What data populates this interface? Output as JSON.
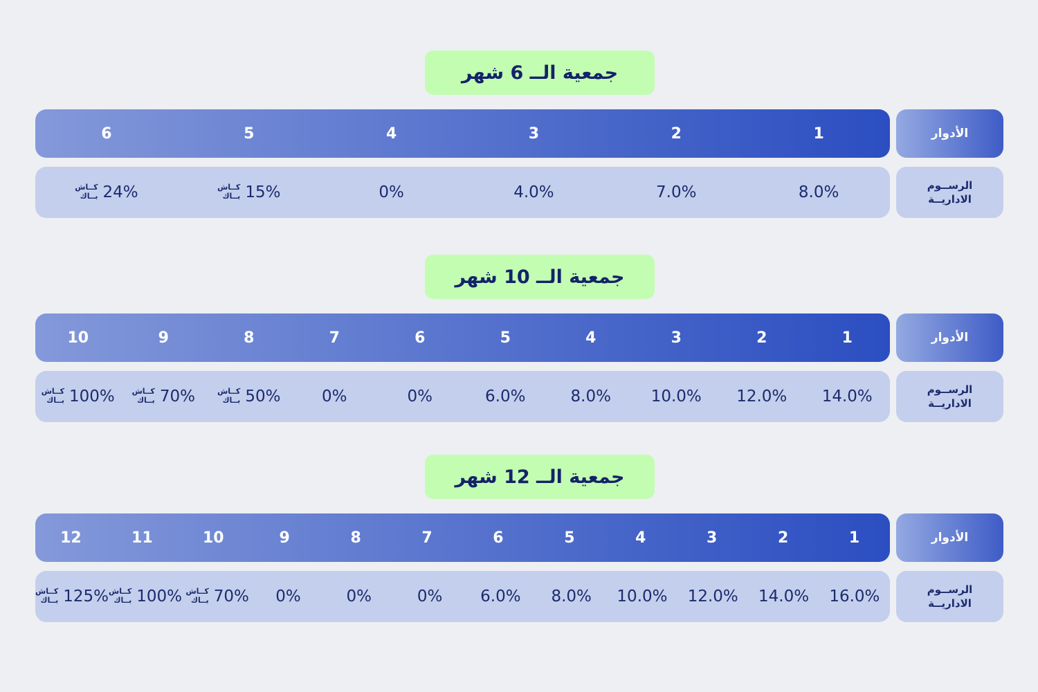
{
  "labels": {
    "roles_header": "الأدوار",
    "fees_header_line1": "الرســوم",
    "fees_header_line2": "الاداريــة",
    "cashback_line1": "كــاش",
    "cashback_line2": "بــاك"
  },
  "colors": {
    "background": "#edeff2",
    "roles_gradient_start": "#8499da",
    "roles_gradient_end": "#2b4ec1",
    "fee_row_background": "#c4cfed",
    "navy_text": "#1b2b6d",
    "badge_background": "#c3fdb1",
    "badge_text": "#142369",
    "role_number_text": "#ffffff"
  },
  "chart_data": [
    {
      "type": "table",
      "title": "جمعية الــ 6 شهر",
      "row_headers": [
        "الأدوار",
        "الرســوم الاداريــة"
      ],
      "columns": [
        {
          "role": "1",
          "fee": "8.0%",
          "cashback": false
        },
        {
          "role": "2",
          "fee": "7.0%",
          "cashback": false
        },
        {
          "role": "3",
          "fee": "4.0%",
          "cashback": false
        },
        {
          "role": "4",
          "fee": "0%",
          "cashback": false
        },
        {
          "role": "5",
          "fee": "15%",
          "cashback": true
        },
        {
          "role": "6",
          "fee": "24%",
          "cashback": true
        }
      ]
    },
    {
      "type": "table",
      "title": "جمعية الــ 10 شهر",
      "row_headers": [
        "الأدوار",
        "الرســوم الاداريــة"
      ],
      "columns": [
        {
          "role": "1",
          "fee": "14.0%",
          "cashback": false
        },
        {
          "role": "2",
          "fee": "12.0%",
          "cashback": false
        },
        {
          "role": "3",
          "fee": "10.0%",
          "cashback": false
        },
        {
          "role": "4",
          "fee": "8.0%",
          "cashback": false
        },
        {
          "role": "5",
          "fee": "6.0%",
          "cashback": false
        },
        {
          "role": "6",
          "fee": "0%",
          "cashback": false
        },
        {
          "role": "7",
          "fee": "0%",
          "cashback": false
        },
        {
          "role": "8",
          "fee": "50%",
          "cashback": true
        },
        {
          "role": "9",
          "fee": "70%",
          "cashback": true
        },
        {
          "role": "10",
          "fee": "100%",
          "cashback": true
        }
      ]
    },
    {
      "type": "table",
      "title": "جمعية الــ 12 شهر",
      "row_headers": [
        "الأدوار",
        "الرســوم الاداريــة"
      ],
      "columns": [
        {
          "role": "1",
          "fee": "16.0%",
          "cashback": false
        },
        {
          "role": "2",
          "fee": "14.0%",
          "cashback": false
        },
        {
          "role": "3",
          "fee": "12.0%",
          "cashback": false
        },
        {
          "role": "4",
          "fee": "10.0%",
          "cashback": false
        },
        {
          "role": "5",
          "fee": "8.0%",
          "cashback": false
        },
        {
          "role": "6",
          "fee": "6.0%",
          "cashback": false
        },
        {
          "role": "7",
          "fee": "0%",
          "cashback": false
        },
        {
          "role": "8",
          "fee": "0%",
          "cashback": false
        },
        {
          "role": "9",
          "fee": "0%",
          "cashback": false
        },
        {
          "role": "10",
          "fee": "70%",
          "cashback": true
        },
        {
          "role": "11",
          "fee": "100%",
          "cashback": true
        },
        {
          "role": "12",
          "fee": "125%",
          "cashback": true
        }
      ]
    }
  ]
}
